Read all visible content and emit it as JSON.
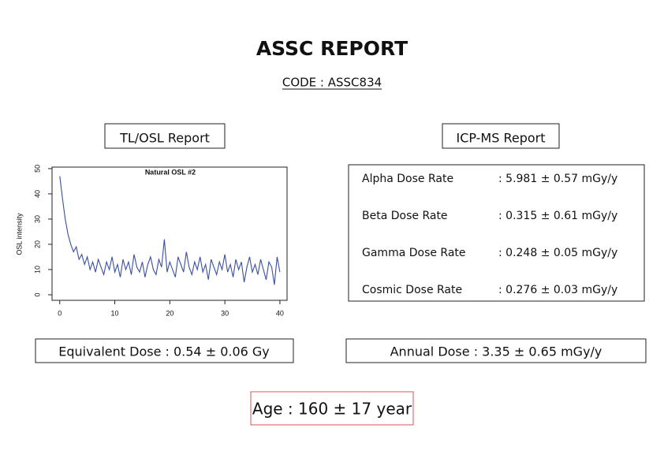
{
  "header": {
    "title": "ASSC REPORT",
    "code": "CODE : ASSC834"
  },
  "tl_osl": {
    "heading": "TL/OSL Report",
    "result": "Equivalent Dose : 0.54 ± 0.06 Gy"
  },
  "icp_ms": {
    "heading": "ICP-MS Report",
    "rows": [
      [
        "Alpha Dose Rate",
        ": 5.981 ± 0.57 mGy/y"
      ],
      [
        "Beta Dose Rate",
        ": 0.315 ± 0.61 mGy/y"
      ],
      [
        "Gamma Dose Rate",
        ": 0.248 ± 0.05 mGy/y"
      ],
      [
        "Cosmic Dose Rate",
        ": 0.276 ± 0.03 mGy/y"
      ]
    ],
    "result": "Annual Dose : 3.35 ± 0.65 mGy/y"
  },
  "age": "Age : 160 ± 17 year",
  "chart_data": {
    "type": "line",
    "title": "Natural OSL #2",
    "y_label": "OSL intensity",
    "x": [
      0,
      0.5,
      1,
      1.5,
      2,
      2.5,
      3,
      3.5,
      4,
      4.5,
      5,
      5.5,
      6,
      6.5,
      7,
      7.5,
      8,
      8.5,
      9,
      9.5,
      10,
      10.5,
      11,
      11.5,
      12,
      12.5,
      13,
      13.5,
      14,
      14.5,
      15,
      15.5,
      16,
      16.5,
      17,
      17.5,
      18,
      18.5,
      19,
      19.5,
      20,
      20.5,
      21,
      21.5,
      22,
      22.5,
      23,
      23.5,
      24,
      24.5,
      25,
      25.5,
      26,
      26.5,
      27,
      27.5,
      28,
      28.5,
      29,
      29.5,
      30,
      30.5,
      31,
      31.5,
      32,
      32.5,
      33,
      33.5,
      34,
      34.5,
      35,
      35.5,
      36,
      36.5,
      37,
      37.5,
      38,
      38.5,
      39,
      39.5,
      40
    ],
    "series": [
      {
        "color": "#3a4fa0",
        "values": [
          47,
          38,
          30,
          24,
          20,
          17,
          19,
          14,
          16,
          12,
          15,
          10,
          13,
          9,
          14,
          11,
          8,
          13,
          10,
          15,
          9,
          12,
          7,
          14,
          10,
          13,
          8,
          16,
          11,
          9,
          13,
          7,
          12,
          15,
          10,
          8,
          14,
          11,
          22,
          9,
          13,
          10,
          7,
          15,
          12,
          9,
          17,
          11,
          8,
          13,
          10,
          15,
          9,
          12,
          6,
          14,
          11,
          8,
          13,
          10,
          16,
          9,
          12,
          7,
          14,
          10,
          13,
          5,
          11,
          15,
          9,
          12,
          8,
          14,
          10,
          6,
          13,
          11,
          4,
          15,
          9
        ]
      }
    ],
    "xlim": [
      -1.4,
      41.3
    ],
    "ylim": [
      -2.2,
      50.6
    ],
    "xticks": [
      0,
      10,
      20,
      30,
      40
    ],
    "yticks": [
      0,
      10,
      20,
      30,
      40,
      50
    ]
  }
}
